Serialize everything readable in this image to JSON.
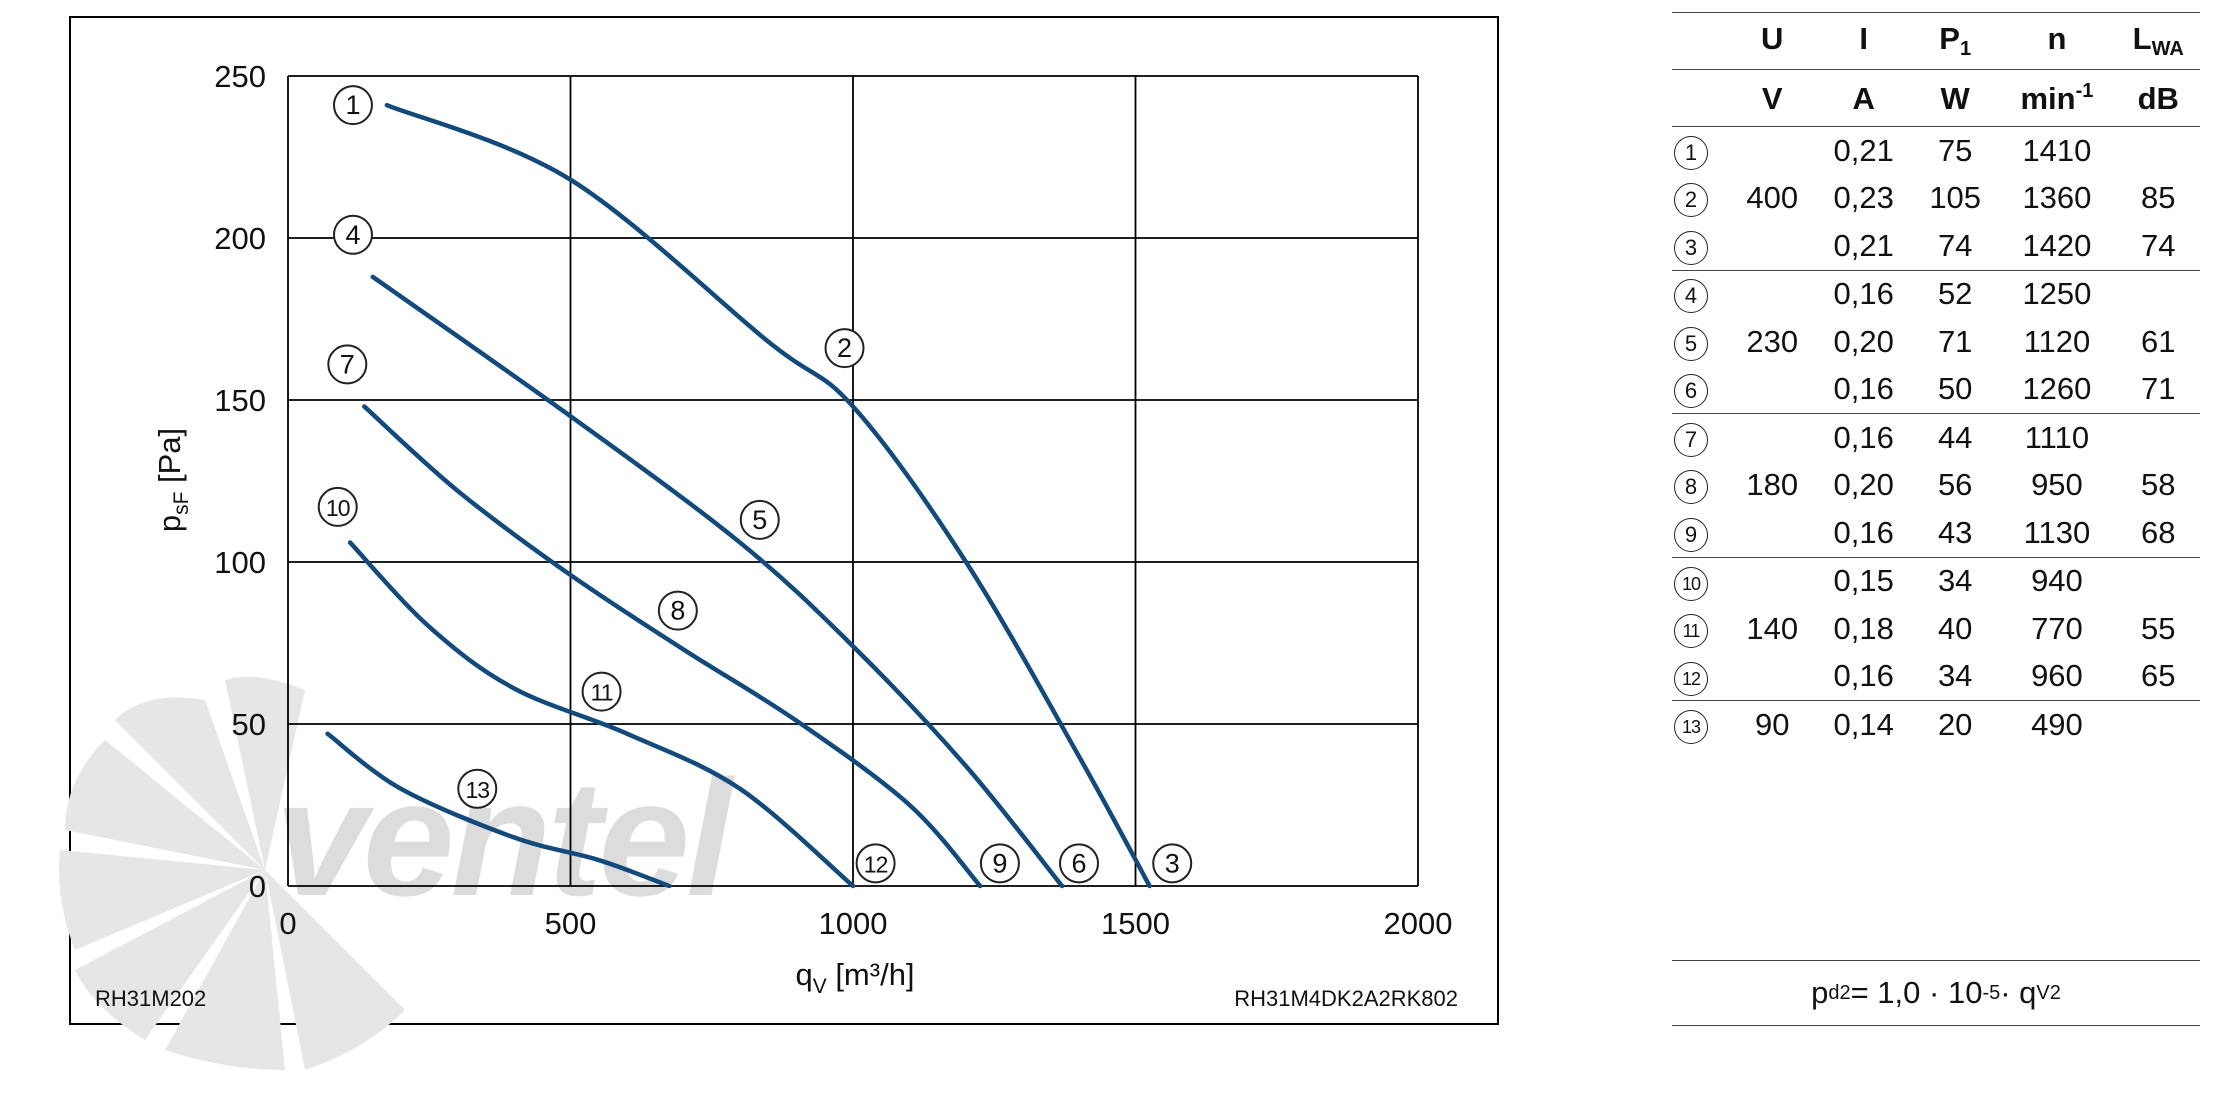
{
  "chart_data": {
    "type": "line",
    "xlabel": {
      "base": "q",
      "sub": "V",
      "unit": " [m³/h]"
    },
    "ylabel": {
      "base": "p",
      "sub": "sF",
      "unit": " [Pa]"
    },
    "xlim": [
      0,
      2000
    ],
    "ylim": [
      0,
      250
    ],
    "xticks": [
      0,
      500,
      1000,
      1500,
      2000
    ],
    "yticks": [
      0,
      50,
      100,
      150,
      200,
      250
    ],
    "grid": true,
    "series": [
      {
        "name": "1-2-3",
        "x": [
          175,
          500,
          850,
          1000,
          1200,
          1400,
          1525
        ],
        "y": [
          241,
          218,
          168,
          148,
          100,
          40,
          0
        ],
        "labels": [
          {
            "text": "1",
            "x": 115,
            "y": 241
          },
          {
            "text": "2",
            "x": 985,
            "y": 166
          },
          {
            "text": "3",
            "x": 1565,
            "y": 7
          }
        ]
      },
      {
        "name": "4-5-6",
        "x": [
          150,
          500,
          800,
          1000,
          1200,
          1370
        ],
        "y": [
          188,
          145,
          106,
          74,
          37,
          0
        ],
        "labels": [
          {
            "text": "4",
            "x": 115,
            "y": 201
          },
          {
            "text": "5",
            "x": 835,
            "y": 113
          },
          {
            "text": "6",
            "x": 1400,
            "y": 7
          }
        ]
      },
      {
        "name": "7-8-9",
        "x": [
          135,
          300,
          500,
          700,
          900,
          1100,
          1225
        ],
        "y": [
          148,
          122,
          96,
          73,
          51,
          25,
          0
        ],
        "labels": [
          {
            "text": "7",
            "x": 105,
            "y": 161
          },
          {
            "text": "8",
            "x": 690,
            "y": 85
          },
          {
            "text": "9",
            "x": 1260,
            "y": 7
          }
        ]
      },
      {
        "name": "10-11-12",
        "x": [
          110,
          250,
          400,
          600,
          800,
          1000
        ],
        "y": [
          106,
          80,
          61,
          47,
          30,
          0
        ],
        "labels": [
          {
            "text": "10",
            "x": 88,
            "y": 117
          },
          {
            "text": "11",
            "x": 555,
            "y": 60
          },
          {
            "text": "12",
            "x": 1040,
            "y": 7
          }
        ]
      },
      {
        "name": "13",
        "x": [
          70,
          200,
          400,
          550,
          675
        ],
        "y": [
          47,
          30,
          15,
          8,
          0
        ],
        "labels": [
          {
            "text": "13",
            "x": 335,
            "y": 30
          }
        ]
      }
    ]
  },
  "footnote_left": "RH31M202",
  "footnote_right": "RH31M4DK2A2RK802",
  "watermark": "ventel",
  "table": {
    "headers": [
      {
        "base": "U",
        "sub": ""
      },
      {
        "base": "I",
        "sub": ""
      },
      {
        "base": "P",
        "sub": "1"
      },
      {
        "base": "n",
        "sub": ""
      },
      {
        "base": "L",
        "sub": "WA"
      }
    ],
    "units": [
      {
        "base": "V",
        "sup": ""
      },
      {
        "base": "A",
        "sup": ""
      },
      {
        "base": "W",
        "sup": ""
      },
      {
        "base": "min",
        "sup": "-1"
      },
      {
        "base": "dB",
        "sup": ""
      }
    ],
    "rows": [
      {
        "sel": "1",
        "U": "",
        "I": "0,21",
        "P": "75",
        "n": "1410",
        "L": "",
        "end": false
      },
      {
        "sel": "2",
        "U": "400",
        "I": "0,23",
        "P": "105",
        "n": "1360",
        "L": "85",
        "end": false
      },
      {
        "sel": "3",
        "U": "",
        "I": "0,21",
        "P": "74",
        "n": "1420",
        "L": "74",
        "end": true
      },
      {
        "sel": "4",
        "U": "",
        "I": "0,16",
        "P": "52",
        "n": "1250",
        "L": "",
        "end": false
      },
      {
        "sel": "5",
        "U": "230",
        "I": "0,20",
        "P": "71",
        "n": "1120",
        "L": "61",
        "end": false
      },
      {
        "sel": "6",
        "U": "",
        "I": "0,16",
        "P": "50",
        "n": "1260",
        "L": "71",
        "end": true
      },
      {
        "sel": "7",
        "U": "",
        "I": "0,16",
        "P": "44",
        "n": "1110",
        "L": "",
        "end": false
      },
      {
        "sel": "8",
        "U": "180",
        "I": "0,20",
        "P": "56",
        "n": "950",
        "L": "58",
        "end": false
      },
      {
        "sel": "9",
        "U": "",
        "I": "0,16",
        "P": "43",
        "n": "1130",
        "L": "68",
        "end": true
      },
      {
        "sel": "10",
        "U": "",
        "I": "0,15",
        "P": "34",
        "n": "940",
        "L": "",
        "end": false
      },
      {
        "sel": "11",
        "U": "140",
        "I": "0,18",
        "P": "40",
        "n": "770",
        "L": "55",
        "end": false
      },
      {
        "sel": "12",
        "U": "",
        "I": "0,16",
        "P": "34",
        "n": "960",
        "L": "65",
        "end": true
      },
      {
        "sel": "13",
        "U": "90",
        "I": "0,14",
        "P": "20",
        "n": "490",
        "L": "",
        "end": false
      }
    ]
  },
  "formula": {
    "lhs_base": "p",
    "lhs_sub": "d2",
    "coef": " = 1,0 · 10",
    "exp": "-5",
    "mid": " · q",
    "var_sub": "V",
    "var_sup": "2"
  },
  "colors": {
    "curve": "#134a7c",
    "grid": "#000000",
    "text": "#111111",
    "watermark": "#d9d9d9",
    "watermark_accent": "#c5d5e4"
  }
}
